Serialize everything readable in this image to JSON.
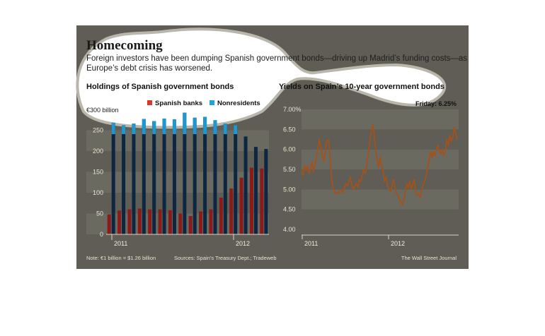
{
  "colors": {
    "background": "#5f5d55",
    "band_light": "#6b6a61",
    "band_dark": "#5f5d55",
    "blob": "#ffffff",
    "spanish_banks": "#8b1a1a",
    "nonresidents": "#0c2742",
    "spanish_banks_legend": "#d9372c",
    "nonresidents_legend": "#1ea3dc",
    "nonresidents_visible": "#1f98cf",
    "yield_line": "#a4521b"
  },
  "header": {
    "title": "Homecoming",
    "subtitle_line1": "Foreign investors have been dumping Spanish government bonds—driving up Madrid’s funding costs—as",
    "subtitle_line2": "Europe’s debt crisis has worsened."
  },
  "footer": {
    "note": "Note: €1 billion = $1.26 billion",
    "sources": "Sources: Spain’s Treasury Dept.; Tradeweb",
    "credit": "The Wall Street Journal"
  },
  "chart_data": [
    {
      "type": "bar",
      "title": "Holdings of Spanish government bonds",
      "unit_label": "€300 billion",
      "ylim": [
        0,
        300
      ],
      "yticks": [
        "250",
        "200",
        "150",
        "100",
        "50",
        "0"
      ],
      "xtick_labels": [
        "2011",
        "2012"
      ],
      "legend": [
        "Spanish banks",
        "Nonresidents"
      ],
      "series": [
        {
          "name": "Spanish banks",
          "values": [
            48,
            57,
            60,
            62,
            60,
            60,
            58,
            50,
            44,
            55,
            60,
            88,
            110,
            136,
            160,
            158
          ]
        },
        {
          "name": "Nonresidents",
          "values": [
            268,
            262,
            266,
            277,
            272,
            278,
            276,
            292,
            280,
            282,
            274,
            266,
            262,
            235,
            210,
            205
          ]
        }
      ],
      "grid": true
    },
    {
      "type": "line",
      "title": "Yields on Spain’s 10-year government bonds",
      "annotation": "Friday: 6.25%",
      "ylim": [
        4.0,
        7.0
      ],
      "yticks": [
        "7.00%",
        "6.50",
        "6.00",
        "5.50",
        "5.00",
        "4.50",
        "4.00"
      ],
      "xtick_labels": [
        "2011",
        "2012"
      ],
      "series": [
        {
          "name": "",
          "values": [
            5.45,
            5.35,
            5.6,
            5.48,
            5.58,
            5.4,
            5.5,
            5.7,
            5.45,
            5.6,
            5.8,
            6.0,
            6.25,
            6.05,
            5.85,
            5.7,
            5.95,
            6.2,
            6.25,
            6.0,
            5.4,
            5.05,
            4.98,
            4.88,
            4.9,
            4.95,
            4.92,
            4.98,
            4.93,
            5.05,
            5.15,
            5.08,
            5.2,
            5.3,
            5.1,
            5.0,
            5.08,
            5.15,
            5.05,
            5.25,
            5.2,
            5.35,
            5.5,
            5.4,
            5.6,
            5.9,
            6.2,
            6.45,
            6.62,
            6.35,
            5.95,
            5.75,
            5.55,
            5.8,
            5.6,
            5.45,
            5.2,
            5.3,
            5.1,
            5.0,
            4.95,
            5.1,
            5.25,
            5.05,
            4.9,
            4.85,
            4.75,
            4.7,
            4.6,
            4.75,
            4.95,
            5.15,
            5.05,
            5.2,
            5.0,
            5.1,
            5.25,
            4.95,
            4.85,
            4.9,
            4.8,
            4.98,
            5.1,
            5.2,
            5.35,
            5.55,
            5.75,
            5.95,
            5.8,
            5.95,
            5.85,
            6.0,
            6.1,
            5.95,
            5.9,
            6.0,
            5.85,
            5.95,
            6.25,
            6.1,
            6.35,
            6.2,
            6.3,
            6.55,
            6.4,
            6.25
          ]
        }
      ],
      "grid": true
    }
  ]
}
